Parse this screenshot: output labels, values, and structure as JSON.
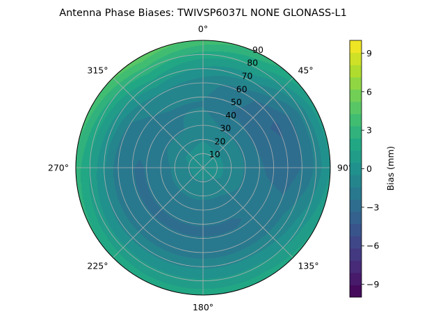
{
  "chart_data": {
    "type": "polar-contour",
    "title": "Antenna Phase Biases: TWIVSP6037L     NONE GLONASS-L1",
    "azimuth_direction": "clockwise",
    "azimuth_zero": "top",
    "angle_ticks": [
      "0°",
      "45°",
      "90°",
      "135°",
      "180°",
      "225°",
      "270°",
      "315°"
    ],
    "radial_ticks": [
      "10",
      "20",
      "30",
      "40",
      "50",
      "60",
      "70",
      "80",
      "90"
    ],
    "radial_range": [
      0,
      90
    ],
    "grid": true,
    "colormap": "viridis",
    "colorbar": {
      "label": "Bias (mm)",
      "range": [
        -10,
        10
      ],
      "levels": 21,
      "ticks": [
        "−9",
        "−6",
        "−3",
        "0",
        "3",
        "6",
        "9"
      ],
      "tick_values": [
        -9,
        -6,
        -3,
        0,
        3,
        6,
        9
      ],
      "placement": "right"
    },
    "field": {
      "azimuths_deg": [
        0,
        30,
        60,
        90,
        120,
        150,
        180,
        210,
        240,
        270,
        300,
        330
      ],
      "zenith_deg": [
        0,
        15,
        30,
        45,
        60,
        75,
        90
      ],
      "values_mm": [
        [
          0.0,
          -0.3,
          -1.0,
          -1.5,
          -1.0,
          1.0,
          4.0
        ],
        [
          0.0,
          -0.5,
          -1.5,
          -2.5,
          -2.0,
          0.5,
          3.0
        ],
        [
          0.0,
          -0.5,
          -1.5,
          -3.0,
          -3.5,
          -2.0,
          1.0
        ],
        [
          0.0,
          -0.5,
          -1.5,
          -2.5,
          -3.0,
          -2.0,
          0.5
        ],
        [
          0.0,
          -0.5,
          -1.5,
          -2.0,
          -2.0,
          -0.5,
          1.5
        ],
        [
          0.0,
          -0.8,
          -2.0,
          -2.5,
          -2.0,
          0.0,
          2.0
        ],
        [
          0.0,
          -0.8,
          -2.0,
          -2.5,
          -2.0,
          0.0,
          2.0
        ],
        [
          0.0,
          -0.8,
          -2.0,
          -2.5,
          -2.0,
          0.0,
          2.0
        ],
        [
          0.0,
          -0.8,
          -2.0,
          -2.5,
          -2.0,
          0.0,
          2.5
        ],
        [
          0.0,
          -0.8,
          -2.0,
          -2.5,
          -2.0,
          0.5,
          3.0
        ],
        [
          0.0,
          -0.5,
          -1.5,
          -2.0,
          -1.5,
          1.0,
          4.0
        ],
        [
          0.0,
          -0.5,
          -1.5,
          -1.5,
          -0.5,
          2.0,
          5.0
        ]
      ]
    }
  },
  "colors": {
    "grid": "#b0b0b0",
    "spine": "#000000"
  }
}
